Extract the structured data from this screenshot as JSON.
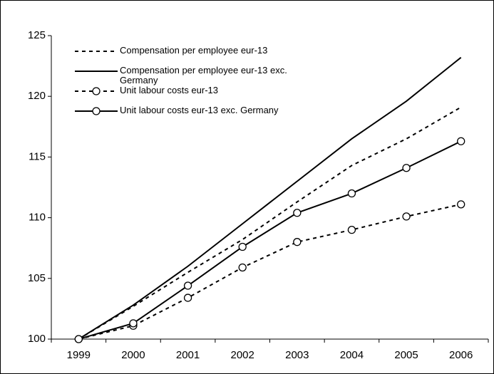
{
  "chart_data": {
    "type": "line",
    "categories": [
      "1999",
      "2000",
      "2001",
      "2002",
      "2003",
      "2004",
      "2005",
      "2006"
    ],
    "series": [
      {
        "name": "Compensation per employee eur-13",
        "color": "#000000",
        "dash": true,
        "marker": false,
        "values": [
          100,
          102.7,
          105.5,
          108.2,
          111.3,
          114.3,
          116.5,
          119.1
        ]
      },
      {
        "name": "Compensation per employee eur-13 exc. Germany",
        "color": "#000000",
        "dash": false,
        "marker": false,
        "values": [
          100,
          102.8,
          106.0,
          109.5,
          113.0,
          116.5,
          119.6,
          123.2
        ]
      },
      {
        "name": "Unit labour costs eur-13",
        "color": "#000000",
        "dash": true,
        "marker": true,
        "values": [
          100,
          101.1,
          103.4,
          105.9,
          108.0,
          109.0,
          110.1,
          111.1
        ]
      },
      {
        "name": "Unit labour costs eur-13 exc. Germany",
        "color": "#000000",
        "dash": false,
        "marker": true,
        "values": [
          100,
          101.3,
          104.4,
          107.6,
          110.4,
          112.0,
          114.1,
          116.3
        ]
      }
    ],
    "ylim": [
      100,
      125
    ],
    "yticks": [
      100,
      105,
      110,
      115,
      120,
      125
    ],
    "grid": false
  }
}
